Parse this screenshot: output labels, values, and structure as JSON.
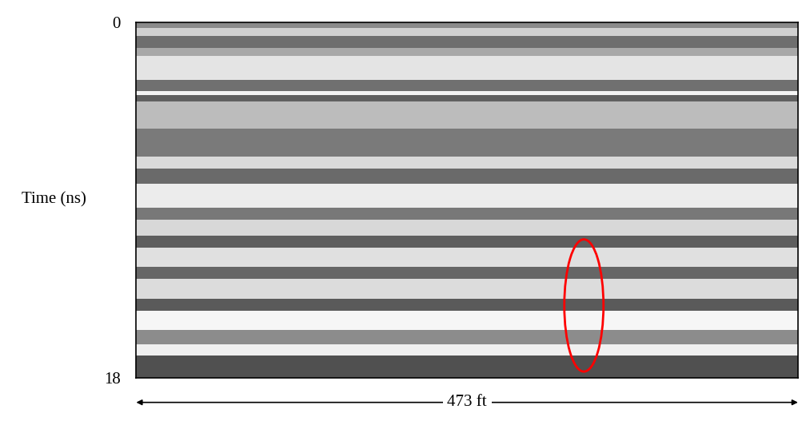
{
  "chart_data": {
    "type": "radargram",
    "y_label": "Time (ns)",
    "x_span_label": "473 ft",
    "xlim": [
      0,
      473
    ],
    "ylim": [
      18,
      0
    ],
    "yticks": [
      0,
      18
    ],
    "tick_labels": "y",
    "grid": false,
    "bands": [
      {
        "top": 0.0,
        "bottom": 0.3,
        "color": "#8a8a8a"
      },
      {
        "top": 0.3,
        "bottom": 0.7,
        "color": "#d0d0d0"
      },
      {
        "top": 0.7,
        "bottom": 1.3,
        "color": "#6e6e6e"
      },
      {
        "top": 1.3,
        "bottom": 1.7,
        "color": "#a8a8a8"
      },
      {
        "top": 1.7,
        "bottom": 2.9,
        "color": "#e4e4e4"
      },
      {
        "top": 2.9,
        "bottom": 3.5,
        "color": "#707070"
      },
      {
        "top": 3.5,
        "bottom": 3.7,
        "color": "#f4f4f4"
      },
      {
        "top": 3.7,
        "bottom": 4.0,
        "color": "#606060"
      },
      {
        "top": 4.0,
        "bottom": 5.4,
        "color": "#bcbcbc"
      },
      {
        "top": 5.4,
        "bottom": 6.8,
        "color": "#7a7a7a"
      },
      {
        "top": 6.8,
        "bottom": 7.4,
        "color": "#dadada"
      },
      {
        "top": 7.4,
        "bottom": 8.2,
        "color": "#6a6a6a"
      },
      {
        "top": 8.2,
        "bottom": 9.4,
        "color": "#ececec"
      },
      {
        "top": 9.4,
        "bottom": 10.0,
        "color": "#787878"
      },
      {
        "top": 10.0,
        "bottom": 10.8,
        "color": "#d8d8d8"
      },
      {
        "top": 10.8,
        "bottom": 11.4,
        "color": "#5e5e5e"
      },
      {
        "top": 11.4,
        "bottom": 12.4,
        "color": "#e0e0e0"
      },
      {
        "top": 12.4,
        "bottom": 13.0,
        "color": "#666666"
      },
      {
        "top": 13.0,
        "bottom": 14.0,
        "color": "#dcdcdc"
      },
      {
        "top": 14.0,
        "bottom": 14.6,
        "color": "#5a5a5a"
      },
      {
        "top": 14.6,
        "bottom": 15.6,
        "color": "#f6f6f6"
      },
      {
        "top": 15.6,
        "bottom": 16.3,
        "color": "#8c8c8c"
      },
      {
        "top": 16.3,
        "bottom": 16.9,
        "color": "#f0f0f0"
      },
      {
        "top": 16.9,
        "bottom": 18.0,
        "color": "#505050"
      }
    ],
    "highlight": {
      "x": 320,
      "width": 28,
      "y": 14.35,
      "height": 6.7,
      "color": "#ff0000"
    }
  }
}
